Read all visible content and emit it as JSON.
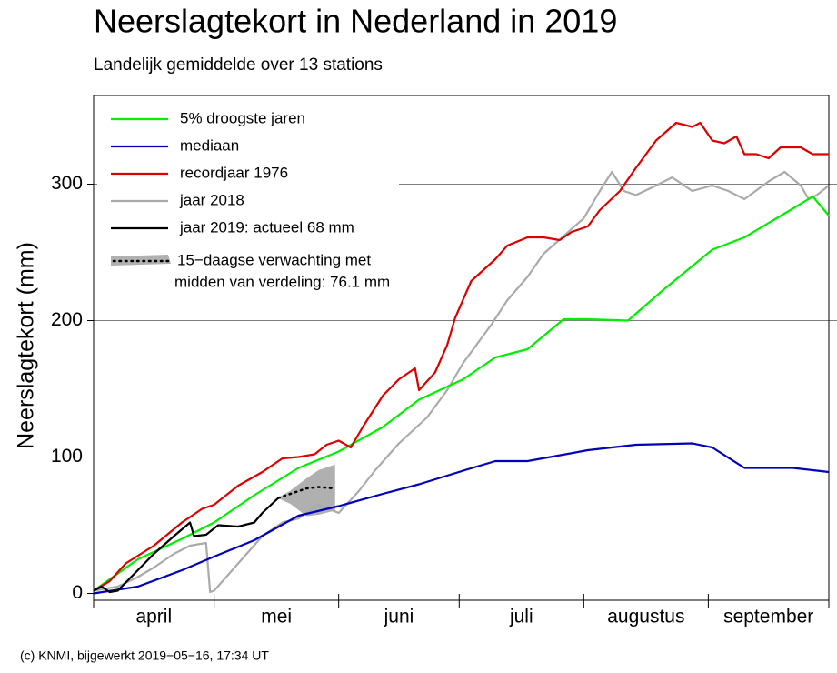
{
  "chart_data": {
    "type": "line",
    "title": "Neerslagtekort in Nederland in 2019",
    "subtitle": "Landelijk gemiddelde over 13 stations",
    "y_label": "Neerslagtekort (mm)",
    "footer": "(c) KNMI, bijgewerkt 2019−05−16, 17:34 UT",
    "xlim": [
      0,
      183
    ],
    "xticks": [
      0,
      30,
      61,
      91,
      122,
      153,
      183
    ],
    "month_labels": [
      "april",
      "mei",
      "juni",
      "juli",
      "augustus",
      "september"
    ],
    "ylim": [
      -5,
      365
    ],
    "yticks": [
      0,
      100,
      200,
      300
    ],
    "grid": true,
    "series": [
      {
        "name": "5% droogste jaren",
        "color": "#00ee00",
        "x": [
          0,
          11,
          22,
          30,
          40,
          51,
          61,
          72,
          81,
          92,
          100,
          108,
          117,
          123,
          133,
          142,
          154,
          162,
          174,
          179,
          183
        ],
        "values": [
          2,
          25,
          40,
          52,
          72,
          92,
          104,
          122,
          142,
          157,
          173,
          179,
          201,
          201,
          200,
          223,
          252,
          261,
          282,
          291,
          277
        ]
      },
      {
        "name": "mediaan",
        "color": "#0000bb",
        "x": [
          0,
          11,
          22,
          30,
          40,
          51,
          61,
          72,
          81,
          92,
          100,
          108,
          123,
          135,
          149,
          154,
          162,
          174,
          183
        ],
        "values": [
          0,
          5,
          17,
          27,
          39,
          57,
          64,
          73,
          80,
          90,
          97,
          97,
          105,
          109,
          110,
          107,
          92,
          92,
          89
        ]
      },
      {
        "name": "recordjaar 1976",
        "color": "#dd0000",
        "x": [
          0,
          4,
          8,
          15,
          22,
          27,
          30,
          36,
          42,
          47,
          51,
          55,
          58,
          61,
          64,
          67,
          72,
          76,
          80,
          81,
          85,
          88,
          90,
          94,
          100,
          103,
          108,
          112,
          116,
          119,
          123,
          126,
          131,
          135,
          140,
          145,
          149,
          151,
          154,
          157,
          160,
          162,
          165,
          168,
          171,
          176,
          179,
          183
        ],
        "values": [
          2,
          9,
          22,
          35,
          52,
          62,
          65,
          79,
          89,
          99,
          100,
          102,
          109,
          112,
          107,
          122,
          145,
          157,
          165,
          149,
          162,
          182,
          202,
          229,
          245,
          255,
          261,
          261,
          259,
          265,
          269,
          281,
          295,
          312,
          332,
          345,
          342,
          345,
          332,
          330,
          335,
          322,
          322,
          319,
          327,
          327,
          322,
          322
        ]
      },
      {
        "name": "jaar 2018",
        "color": "#aaaaaa",
        "x": [
          0,
          6,
          11,
          15,
          20,
          24,
          28,
          29,
          30,
          36,
          42,
          47,
          51,
          56,
          61,
          66,
          70,
          76,
          83,
          88,
          92,
          99,
          103,
          108,
          112,
          117,
          122,
          126,
          129,
          132,
          135,
          140,
          144,
          149,
          154,
          158,
          162,
          168,
          172,
          176,
          178,
          180,
          183
        ],
        "values": [
          2,
          5,
          12,
          19,
          29,
          35,
          37,
          1,
          2,
          22,
          42,
          52,
          55,
          65,
          59,
          75,
          90,
          110,
          129,
          149,
          169,
          197,
          215,
          232,
          249,
          262,
          275,
          295,
          309,
          295,
          292,
          299,
          305,
          295,
          299,
          295,
          289,
          302,
          309,
          299,
          289,
          292,
          299
        ]
      },
      {
        "name": "jaar 2019: actueel 68 mm",
        "color": "#000000",
        "x": [
          0,
          2,
          4,
          6,
          11,
          15,
          20,
          24,
          25,
          28,
          31,
          36,
          40,
          42,
          46
        ],
        "values": [
          2,
          5,
          1,
          2,
          17,
          29,
          42,
          52,
          42,
          43,
          50,
          49,
          52,
          59,
          70
        ]
      }
    ],
    "forecast": {
      "name": [
        "15−daagse verwachting met",
        "midden van verdeling: 76.1 mm"
      ],
      "color": "#b0b0b0",
      "x": [
        46,
        49,
        53,
        56,
        60
      ],
      "values": [
        70,
        73,
        77,
        78,
        77
      ],
      "band_low": [
        70,
        66,
        57,
        58,
        61
      ],
      "band_high": [
        70,
        75,
        84,
        90,
        94
      ]
    }
  }
}
